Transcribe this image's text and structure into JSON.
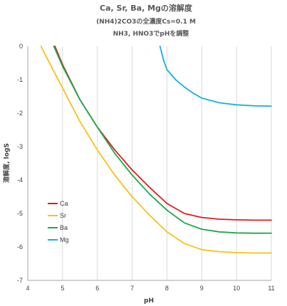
{
  "chart_data": {
    "type": "line",
    "title": "Ca, Sr, Ba, Mgの溶解度",
    "subtitle_1": "(NH4)2CO3の全濃度Cs=0.1 M",
    "subtitle_2": "NH3, HNO3でpHを調整",
    "xlabel": "pH",
    "ylabel": "溶解度, logS",
    "xlim": [
      4,
      11
    ],
    "ylim": [
      -7,
      0
    ],
    "xticks": [
      "4",
      "5",
      "6",
      "7",
      "8",
      "9",
      "10",
      "11"
    ],
    "yticks": [
      "0",
      "-1",
      "-2",
      "-3",
      "-4",
      "-5",
      "-6",
      "-7"
    ],
    "grid": "vertical",
    "legend_position": "bottom-left",
    "series": [
      {
        "name": "Ca",
        "color": "#e31a1c",
        "points": [
          [
            4.78,
            0
          ],
          [
            5.0,
            -0.55
          ],
          [
            5.5,
            -1.6
          ],
          [
            6.0,
            -2.42
          ],
          [
            6.5,
            -3.1
          ],
          [
            7.0,
            -3.7
          ],
          [
            7.5,
            -4.22
          ],
          [
            8.0,
            -4.7
          ],
          [
            8.5,
            -5.0
          ],
          [
            9.0,
            -5.12
          ],
          [
            9.5,
            -5.17
          ],
          [
            10.0,
            -5.19
          ],
          [
            10.5,
            -5.2
          ],
          [
            11.0,
            -5.2
          ]
        ]
      },
      {
        "name": "Sr",
        "color": "#f5c316",
        "points": [
          [
            4.38,
            0
          ],
          [
            4.6,
            -0.45
          ],
          [
            5.0,
            -1.25
          ],
          [
            5.5,
            -2.25
          ],
          [
            6.0,
            -3.1
          ],
          [
            6.5,
            -3.85
          ],
          [
            7.0,
            -4.5
          ],
          [
            7.5,
            -5.05
          ],
          [
            8.0,
            -5.55
          ],
          [
            8.5,
            -5.9
          ],
          [
            9.0,
            -6.08
          ],
          [
            9.5,
            -6.14
          ],
          [
            10.0,
            -6.17
          ],
          [
            10.5,
            -6.18
          ],
          [
            11.0,
            -6.18
          ]
        ]
      },
      {
        "name": "Ba",
        "color": "#1aaa4a",
        "points": [
          [
            4.75,
            0
          ],
          [
            5.0,
            -0.6
          ],
          [
            5.5,
            -1.6
          ],
          [
            6.0,
            -2.42
          ],
          [
            6.5,
            -3.2
          ],
          [
            7.0,
            -3.85
          ],
          [
            7.5,
            -4.42
          ],
          [
            8.0,
            -4.9
          ],
          [
            8.5,
            -5.28
          ],
          [
            9.0,
            -5.47
          ],
          [
            9.5,
            -5.55
          ],
          [
            10.0,
            -5.58
          ],
          [
            10.5,
            -5.59
          ],
          [
            11.0,
            -5.59
          ]
        ]
      },
      {
        "name": "Mg",
        "color": "#17b0dc",
        "points": [
          [
            7.8,
            0
          ],
          [
            7.85,
            -0.2
          ],
          [
            7.9,
            -0.4
          ],
          [
            8.0,
            -0.7
          ],
          [
            8.25,
            -1.0
          ],
          [
            8.5,
            -1.22
          ],
          [
            8.75,
            -1.4
          ],
          [
            9.0,
            -1.55
          ],
          [
            9.5,
            -1.69
          ],
          [
            10.0,
            -1.75
          ],
          [
            10.5,
            -1.78
          ],
          [
            11.0,
            -1.79
          ]
        ]
      }
    ]
  }
}
